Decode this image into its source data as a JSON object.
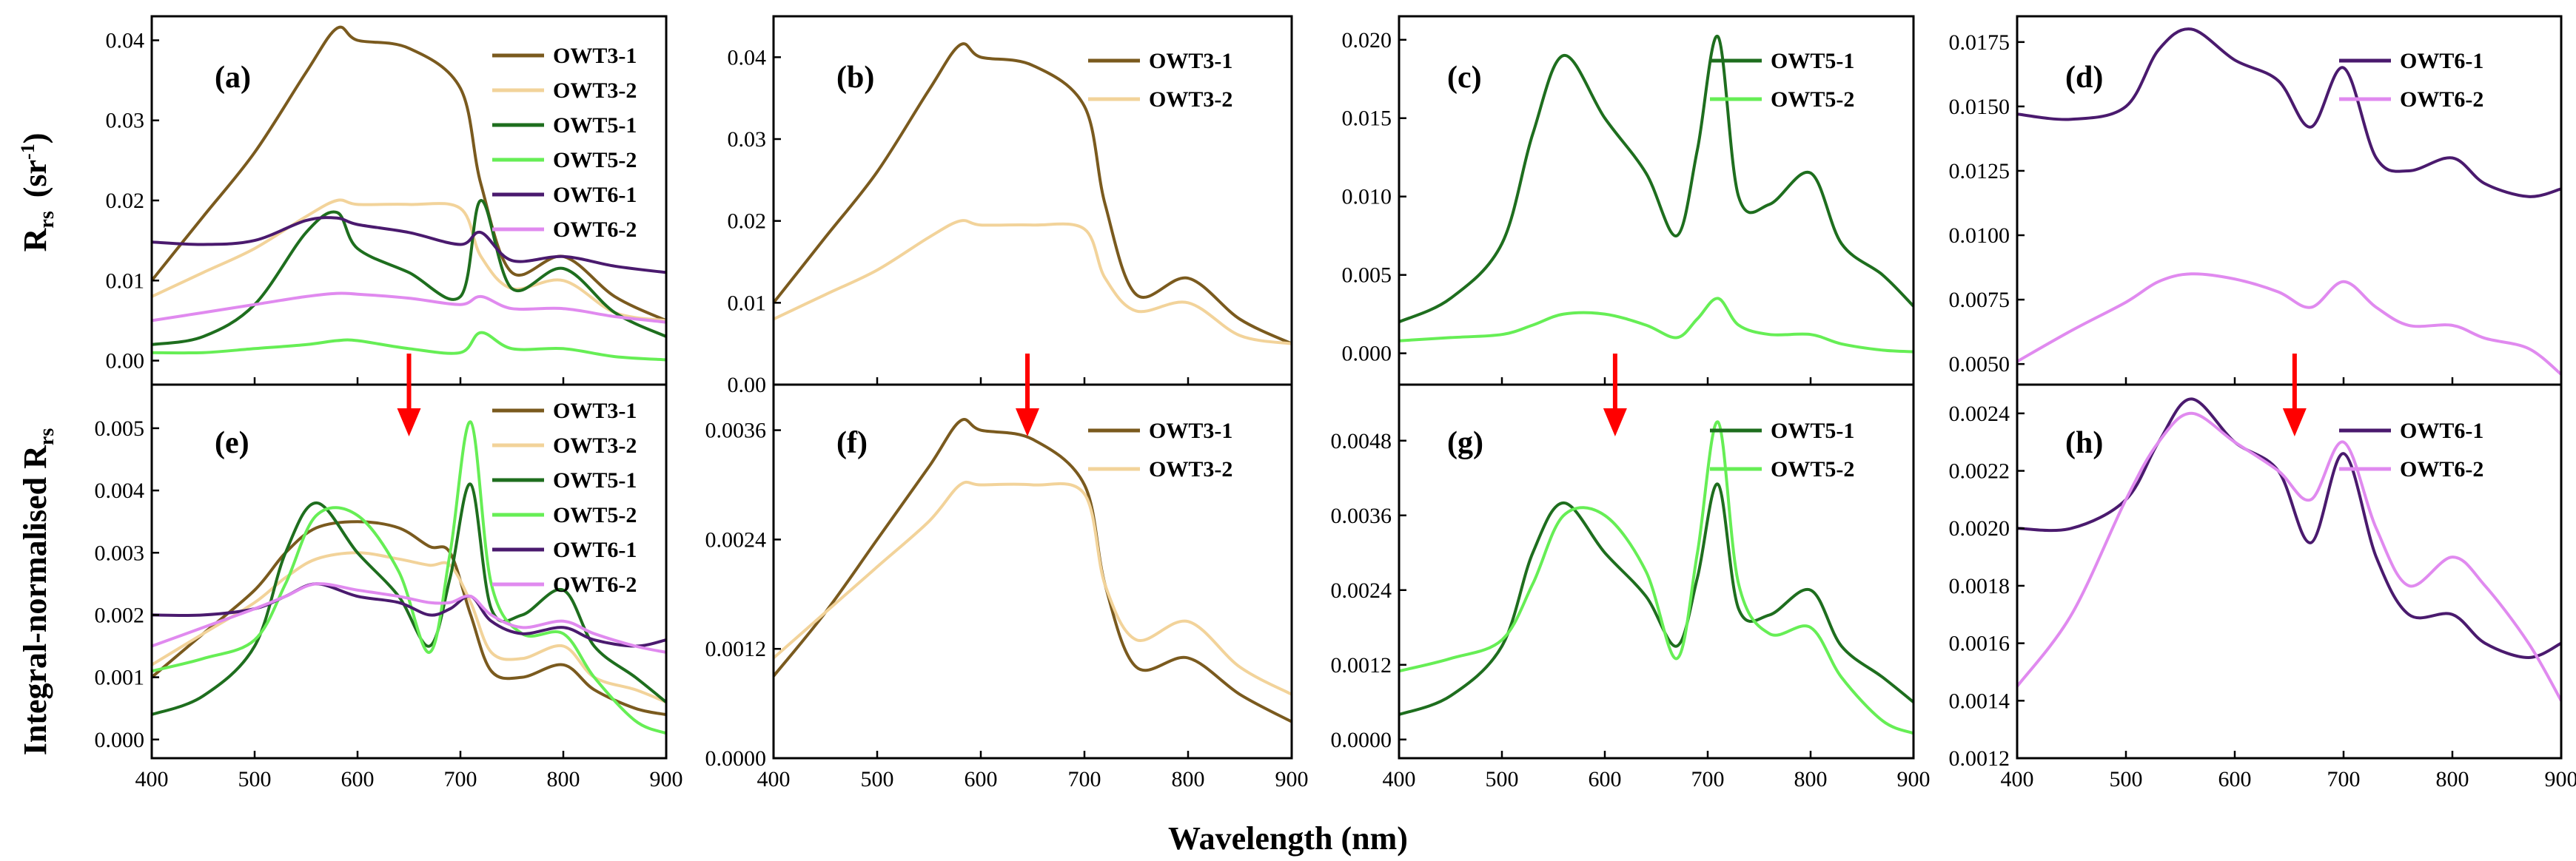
{
  "figure": {
    "x_axis_title": "Wavelength (nm)",
    "y_axis_title_top": {
      "main": "R",
      "sub": "rs",
      "unit_open": "(sr",
      "unit_sup": "-1",
      "unit_close": ")"
    },
    "y_axis_title_bottom": {
      "main": "Integral-normalised R",
      "sub": "rs"
    },
    "arrow_color": "#ff0000"
  },
  "series_colors": {
    "OWT3-1": "#7a5a1e",
    "OWT3-2": "#f2d39a",
    "OWT5-1": "#1e6e1e",
    "OWT5-2": "#66ee55",
    "OWT6-1": "#4a1a6e",
    "OWT6-2": "#e08aef"
  },
  "chart_data": [
    {
      "id": "a",
      "panel_label": "(a)",
      "type": "line",
      "x": [
        400,
        450,
        500,
        550,
        580,
        600,
        650,
        700,
        720,
        750,
        800,
        850,
        900
      ],
      "xlim": [
        400,
        900
      ],
      "ylim": [
        -0.003,
        0.043
      ],
      "xticks": [
        "400",
        "500",
        "600",
        "700",
        "800",
        "900"
      ],
      "yticks": [
        "0.00",
        "0.01",
        "0.02",
        "0.03",
        "0.04"
      ],
      "ytick_values": [
        0,
        0.01,
        0.02,
        0.03,
        0.04
      ],
      "show_xtick_labels": false,
      "series": [
        {
          "name": "OWT3-1",
          "values": [
            0.01,
            0.018,
            0.026,
            0.036,
            0.0415,
            0.04,
            0.039,
            0.034,
            0.022,
            0.011,
            0.013,
            0.008,
            0.005
          ]
        },
        {
          "name": "OWT3-2",
          "values": [
            0.008,
            0.011,
            0.014,
            0.018,
            0.02,
            0.0195,
            0.0195,
            0.019,
            0.013,
            0.009,
            0.01,
            0.006,
            0.005
          ]
        },
        {
          "name": "OWT5-1",
          "values": [
            0.002,
            0.003,
            0.007,
            0.016,
            0.0185,
            0.014,
            0.011,
            0.008,
            0.02,
            0.009,
            0.0115,
            0.006,
            0.003
          ]
        },
        {
          "name": "OWT5-2",
          "values": [
            0.001,
            0.001,
            0.0015,
            0.002,
            0.0025,
            0.0025,
            0.0015,
            0.001,
            0.0035,
            0.0015,
            0.0015,
            0.0005,
            0.0001
          ]
        },
        {
          "name": "OWT6-1",
          "values": [
            0.0148,
            0.0145,
            0.015,
            0.0175,
            0.0178,
            0.017,
            0.016,
            0.0145,
            0.016,
            0.0125,
            0.013,
            0.0118,
            0.011
          ]
        },
        {
          "name": "OWT6-2",
          "values": [
            0.005,
            0.006,
            0.007,
            0.008,
            0.0084,
            0.0083,
            0.0078,
            0.007,
            0.008,
            0.0065,
            0.0065,
            0.0055,
            0.0048
          ]
        }
      ]
    },
    {
      "id": "b",
      "panel_label": "(b)",
      "type": "line",
      "x": [
        400,
        450,
        500,
        550,
        580,
        600,
        650,
        700,
        720,
        750,
        800,
        850,
        900
      ],
      "xlim": [
        400,
        900
      ],
      "ylim": [
        0,
        0.045
      ],
      "xticks": [
        "400",
        "500",
        "600",
        "700",
        "800",
        "900"
      ],
      "yticks": [
        "0.00",
        "0.01",
        "0.02",
        "0.03",
        "0.04"
      ],
      "ytick_values": [
        0,
        0.01,
        0.02,
        0.03,
        0.04
      ],
      "show_xtick_labels": false,
      "series": [
        {
          "name": "OWT3-1",
          "values": [
            0.01,
            0.018,
            0.026,
            0.036,
            0.0415,
            0.04,
            0.039,
            0.034,
            0.022,
            0.011,
            0.013,
            0.008,
            0.005
          ]
        },
        {
          "name": "OWT3-2",
          "values": [
            0.008,
            0.011,
            0.014,
            0.018,
            0.02,
            0.0195,
            0.0195,
            0.019,
            0.013,
            0.009,
            0.01,
            0.006,
            0.005
          ]
        }
      ]
    },
    {
      "id": "c",
      "panel_label": "(c)",
      "type": "line",
      "x": [
        400,
        450,
        500,
        530,
        560,
        600,
        640,
        670,
        690,
        710,
        730,
        760,
        800,
        830,
        870,
        900
      ],
      "xlim": [
        400,
        900
      ],
      "ylim": [
        -0.002,
        0.0215
      ],
      "xticks": [
        "400",
        "500",
        "600",
        "700",
        "800",
        "900"
      ],
      "yticks": [
        "0.000",
        "0.005",
        "0.010",
        "0.015",
        "0.020"
      ],
      "ytick_values": [
        0,
        0.005,
        0.01,
        0.015,
        0.02
      ],
      "show_xtick_labels": false,
      "series": [
        {
          "name": "OWT5-1",
          "values": [
            0.002,
            0.0035,
            0.007,
            0.014,
            0.019,
            0.015,
            0.0115,
            0.0075,
            0.013,
            0.0202,
            0.01,
            0.0095,
            0.0115,
            0.007,
            0.005,
            0.003
          ]
        },
        {
          "name": "OWT5-2",
          "values": [
            0.0008,
            0.001,
            0.0012,
            0.0018,
            0.0025,
            0.0025,
            0.0018,
            0.001,
            0.0022,
            0.0035,
            0.0018,
            0.0012,
            0.0012,
            0.0006,
            0.0002,
            0.0001
          ]
        }
      ]
    },
    {
      "id": "d",
      "panel_label": "(d)",
      "type": "line",
      "x": [
        400,
        450,
        500,
        530,
        560,
        600,
        640,
        670,
        700,
        730,
        760,
        800,
        830,
        870,
        900
      ],
      "xlim": [
        400,
        900
      ],
      "ylim": [
        0.0042,
        0.0185
      ],
      "xticks": [
        "400",
        "500",
        "600",
        "700",
        "800",
        "900"
      ],
      "yticks": [
        "0.0050",
        "0.0075",
        "0.0100",
        "0.0125",
        "0.0150",
        "0.0175"
      ],
      "ytick_values": [
        0.005,
        0.0075,
        0.01,
        0.0125,
        0.015,
        0.0175
      ],
      "show_xtick_labels": false,
      "series": [
        {
          "name": "OWT6-1",
          "values": [
            0.0147,
            0.0145,
            0.015,
            0.0172,
            0.018,
            0.0168,
            0.016,
            0.0142,
            0.0165,
            0.013,
            0.0125,
            0.013,
            0.012,
            0.0115,
            0.0118
          ]
        },
        {
          "name": "OWT6-2",
          "values": [
            0.0051,
            0.0063,
            0.0074,
            0.0082,
            0.0085,
            0.0083,
            0.0078,
            0.0072,
            0.0082,
            0.0072,
            0.0065,
            0.0065,
            0.006,
            0.0056,
            0.0046
          ]
        }
      ]
    },
    {
      "id": "e",
      "panel_label": "(e)",
      "type": "line",
      "x": [
        400,
        450,
        500,
        530,
        560,
        600,
        640,
        670,
        690,
        710,
        730,
        760,
        800,
        830,
        870,
        900
      ],
      "xlim": [
        400,
        900
      ],
      "ylim": [
        -0.0003,
        0.0057
      ],
      "xticks": [
        "400",
        "500",
        "600",
        "700",
        "800",
        "900"
      ],
      "yticks": [
        "0.000",
        "0.001",
        "0.002",
        "0.003",
        "0.004",
        "0.005"
      ],
      "ytick_values": [
        0,
        0.001,
        0.002,
        0.003,
        0.004,
        0.005
      ],
      "show_xtick_labels": true,
      "series": [
        {
          "name": "OWT3-1",
          "values": [
            0.001,
            0.0017,
            0.0024,
            0.003,
            0.0034,
            0.0035,
            0.0034,
            0.0031,
            0.003,
            0.002,
            0.0011,
            0.001,
            0.0012,
            0.0008,
            0.0005,
            0.0004
          ]
        },
        {
          "name": "OWT3-2",
          "values": [
            0.0012,
            0.0017,
            0.0022,
            0.0026,
            0.0029,
            0.003,
            0.0029,
            0.0028,
            0.0028,
            0.0022,
            0.0014,
            0.0013,
            0.0015,
            0.001,
            0.0008,
            0.0006
          ]
        },
        {
          "name": "OWT5-1",
          "values": [
            0.0004,
            0.0007,
            0.0015,
            0.003,
            0.0038,
            0.003,
            0.0023,
            0.0015,
            0.0026,
            0.0041,
            0.0021,
            0.002,
            0.0024,
            0.0015,
            0.001,
            0.0006
          ]
        },
        {
          "name": "OWT5-2",
          "values": [
            0.0011,
            0.0013,
            0.0016,
            0.0025,
            0.0036,
            0.0036,
            0.0027,
            0.0014,
            0.003,
            0.0051,
            0.0025,
            0.0017,
            0.0017,
            0.001,
            0.0003,
            0.0001
          ]
        },
        {
          "name": "OWT6-1",
          "values": [
            0.002,
            0.002,
            0.0021,
            0.0023,
            0.0025,
            0.0023,
            0.0022,
            0.002,
            0.0021,
            0.0023,
            0.0019,
            0.0017,
            0.0018,
            0.0016,
            0.0015,
            0.0016
          ]
        },
        {
          "name": "OWT6-2",
          "values": [
            0.0015,
            0.0018,
            0.0021,
            0.0023,
            0.0025,
            0.0024,
            0.0023,
            0.0022,
            0.0022,
            0.0023,
            0.002,
            0.0018,
            0.0019,
            0.0017,
            0.0015,
            0.0014
          ]
        }
      ]
    },
    {
      "id": "f",
      "panel_label": "(f)",
      "type": "line",
      "x": [
        400,
        450,
        500,
        550,
        580,
        600,
        650,
        700,
        720,
        750,
        800,
        850,
        900
      ],
      "xlim": [
        400,
        900
      ],
      "ylim": [
        0,
        0.0041
      ],
      "xticks": [
        "400",
        "500",
        "600",
        "700",
        "800",
        "900"
      ],
      "yticks": [
        "0.0000",
        "0.0012",
        "0.0024",
        "0.0036"
      ],
      "ytick_values": [
        0,
        0.0012,
        0.0024,
        0.0036
      ],
      "show_xtick_labels": true,
      "series": [
        {
          "name": "OWT3-1",
          "values": [
            0.0009,
            0.0016,
            0.0024,
            0.0032,
            0.0037,
            0.0036,
            0.0035,
            0.003,
            0.0019,
            0.001,
            0.0011,
            0.0007,
            0.0004
          ]
        },
        {
          "name": "OWT3-2",
          "values": [
            0.0011,
            0.0016,
            0.0021,
            0.0026,
            0.003,
            0.003,
            0.003,
            0.0029,
            0.0019,
            0.0013,
            0.0015,
            0.001,
            0.0007
          ]
        }
      ]
    },
    {
      "id": "g",
      "panel_label": "(g)",
      "type": "line",
      "x": [
        400,
        450,
        500,
        530,
        560,
        600,
        640,
        670,
        690,
        710,
        730,
        760,
        800,
        830,
        870,
        900
      ],
      "xlim": [
        400,
        900
      ],
      "ylim": [
        -0.0003,
        0.0057
      ],
      "xticks": [
        "400",
        "500",
        "600",
        "700",
        "800",
        "900"
      ],
      "yticks": [
        "0.0000",
        "0.0012",
        "0.0024",
        "0.0036",
        "0.0048"
      ],
      "ytick_values": [
        0,
        0.0012,
        0.0024,
        0.0036,
        0.0048
      ],
      "show_xtick_labels": true,
      "series": [
        {
          "name": "OWT5-1",
          "values": [
            0.0004,
            0.0007,
            0.0015,
            0.003,
            0.0038,
            0.003,
            0.0023,
            0.0015,
            0.0026,
            0.0041,
            0.0021,
            0.002,
            0.0024,
            0.0015,
            0.001,
            0.0006
          ]
        },
        {
          "name": "OWT5-2",
          "values": [
            0.0011,
            0.0013,
            0.0016,
            0.0025,
            0.0036,
            0.0036,
            0.0027,
            0.0013,
            0.003,
            0.0051,
            0.0025,
            0.0017,
            0.0018,
            0.001,
            0.0003,
            0.0001
          ]
        }
      ]
    },
    {
      "id": "h",
      "panel_label": "(h)",
      "type": "line",
      "x": [
        400,
        450,
        500,
        530,
        560,
        600,
        640,
        670,
        700,
        730,
        760,
        800,
        830,
        870,
        900
      ],
      "xlim": [
        400,
        900
      ],
      "ylim": [
        0.0012,
        0.0025
      ],
      "xticks": [
        "400",
        "500",
        "600",
        "700",
        "800",
        "900"
      ],
      "yticks": [
        "0.0012",
        "0.0014",
        "0.0016",
        "0.0018",
        "0.0020",
        "0.0022",
        "0.0024"
      ],
      "ytick_values": [
        0.0012,
        0.0014,
        0.0016,
        0.0018,
        0.002,
        0.0022,
        0.0024
      ],
      "show_xtick_labels": true,
      "series": [
        {
          "name": "OWT6-1",
          "values": [
            0.002,
            0.002,
            0.0021,
            0.0023,
            0.00245,
            0.0023,
            0.0022,
            0.00195,
            0.00226,
            0.0019,
            0.0017,
            0.0017,
            0.0016,
            0.00155,
            0.0016
          ]
        },
        {
          "name": "OWT6-2",
          "values": [
            0.00145,
            0.0017,
            0.0021,
            0.0023,
            0.0024,
            0.0023,
            0.0022,
            0.0021,
            0.0023,
            0.002,
            0.0018,
            0.0019,
            0.0018,
            0.0016,
            0.0014
          ]
        }
      ]
    }
  ],
  "arrows": [
    {
      "panel": "a",
      "x_value": 650
    },
    {
      "panel": "b",
      "x_value": 645
    },
    {
      "panel": "c",
      "x_value": 610
    },
    {
      "panel": "d",
      "x_value": 655
    }
  ]
}
